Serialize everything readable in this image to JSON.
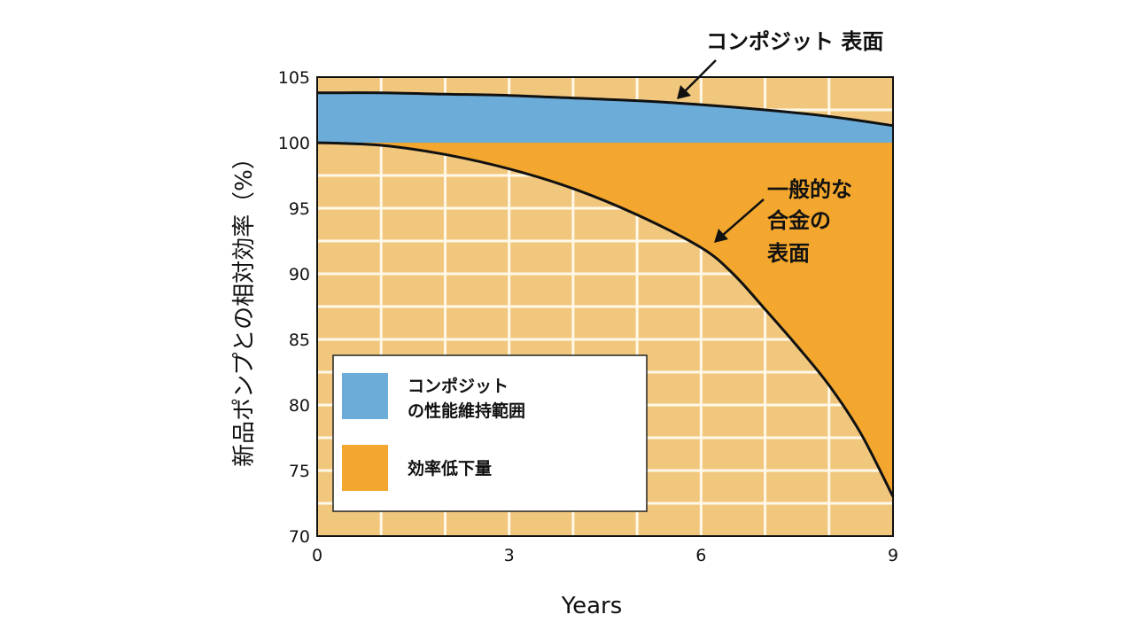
{
  "chart_data": {
    "type": "area",
    "xlabel": "Years",
    "ylabel": "新品ポンプとの相対効率（%）",
    "xlim": [
      0,
      9
    ],
    "ylim": [
      70,
      105
    ],
    "x_ticks": [
      "0",
      "3",
      "6",
      "9"
    ],
    "y_ticks": [
      "70",
      "75",
      "80",
      "85",
      "90",
      "95",
      "100",
      "105"
    ],
    "series": [
      {
        "name": "コンポジット 表面",
        "x": [
          0,
          1,
          2,
          3,
          4,
          5,
          6,
          7,
          8,
          9
        ],
        "y": [
          103.8,
          103.8,
          103.7,
          103.6,
          103.4,
          103.2,
          102.9,
          102.5,
          102.0,
          101.3
        ]
      },
      {
        "name": "一般的な合金の表面",
        "x": [
          0,
          1,
          2,
          3,
          4,
          5,
          6,
          6.5,
          7,
          7.5,
          8,
          8.5,
          9
        ],
        "y": [
          100.0,
          99.8,
          99.1,
          98.0,
          96.5,
          94.5,
          92.0,
          90.0,
          87.3,
          84.5,
          81.5,
          77.8,
          73.0
        ]
      }
    ],
    "annotations": {
      "composite": "コンポジット 表面",
      "alloy_lines": [
        "一般的な",
        "合金の",
        "表面"
      ]
    },
    "legend": {
      "placement": "bottom-left",
      "items": [
        {
          "label_lines": [
            "コンポジット",
            "の性能維持範囲"
          ],
          "color": "#6cacd8"
        },
        {
          "label_lines": [
            "効率低下量"
          ],
          "color": "#f3a72e"
        }
      ]
    },
    "colors": {
      "background": "#f1c77e",
      "grid": "#fff8e8",
      "composite_band": "#6cacd8",
      "loss_area": "#f3a72e",
      "curve": "#111111"
    },
    "grid": true
  }
}
